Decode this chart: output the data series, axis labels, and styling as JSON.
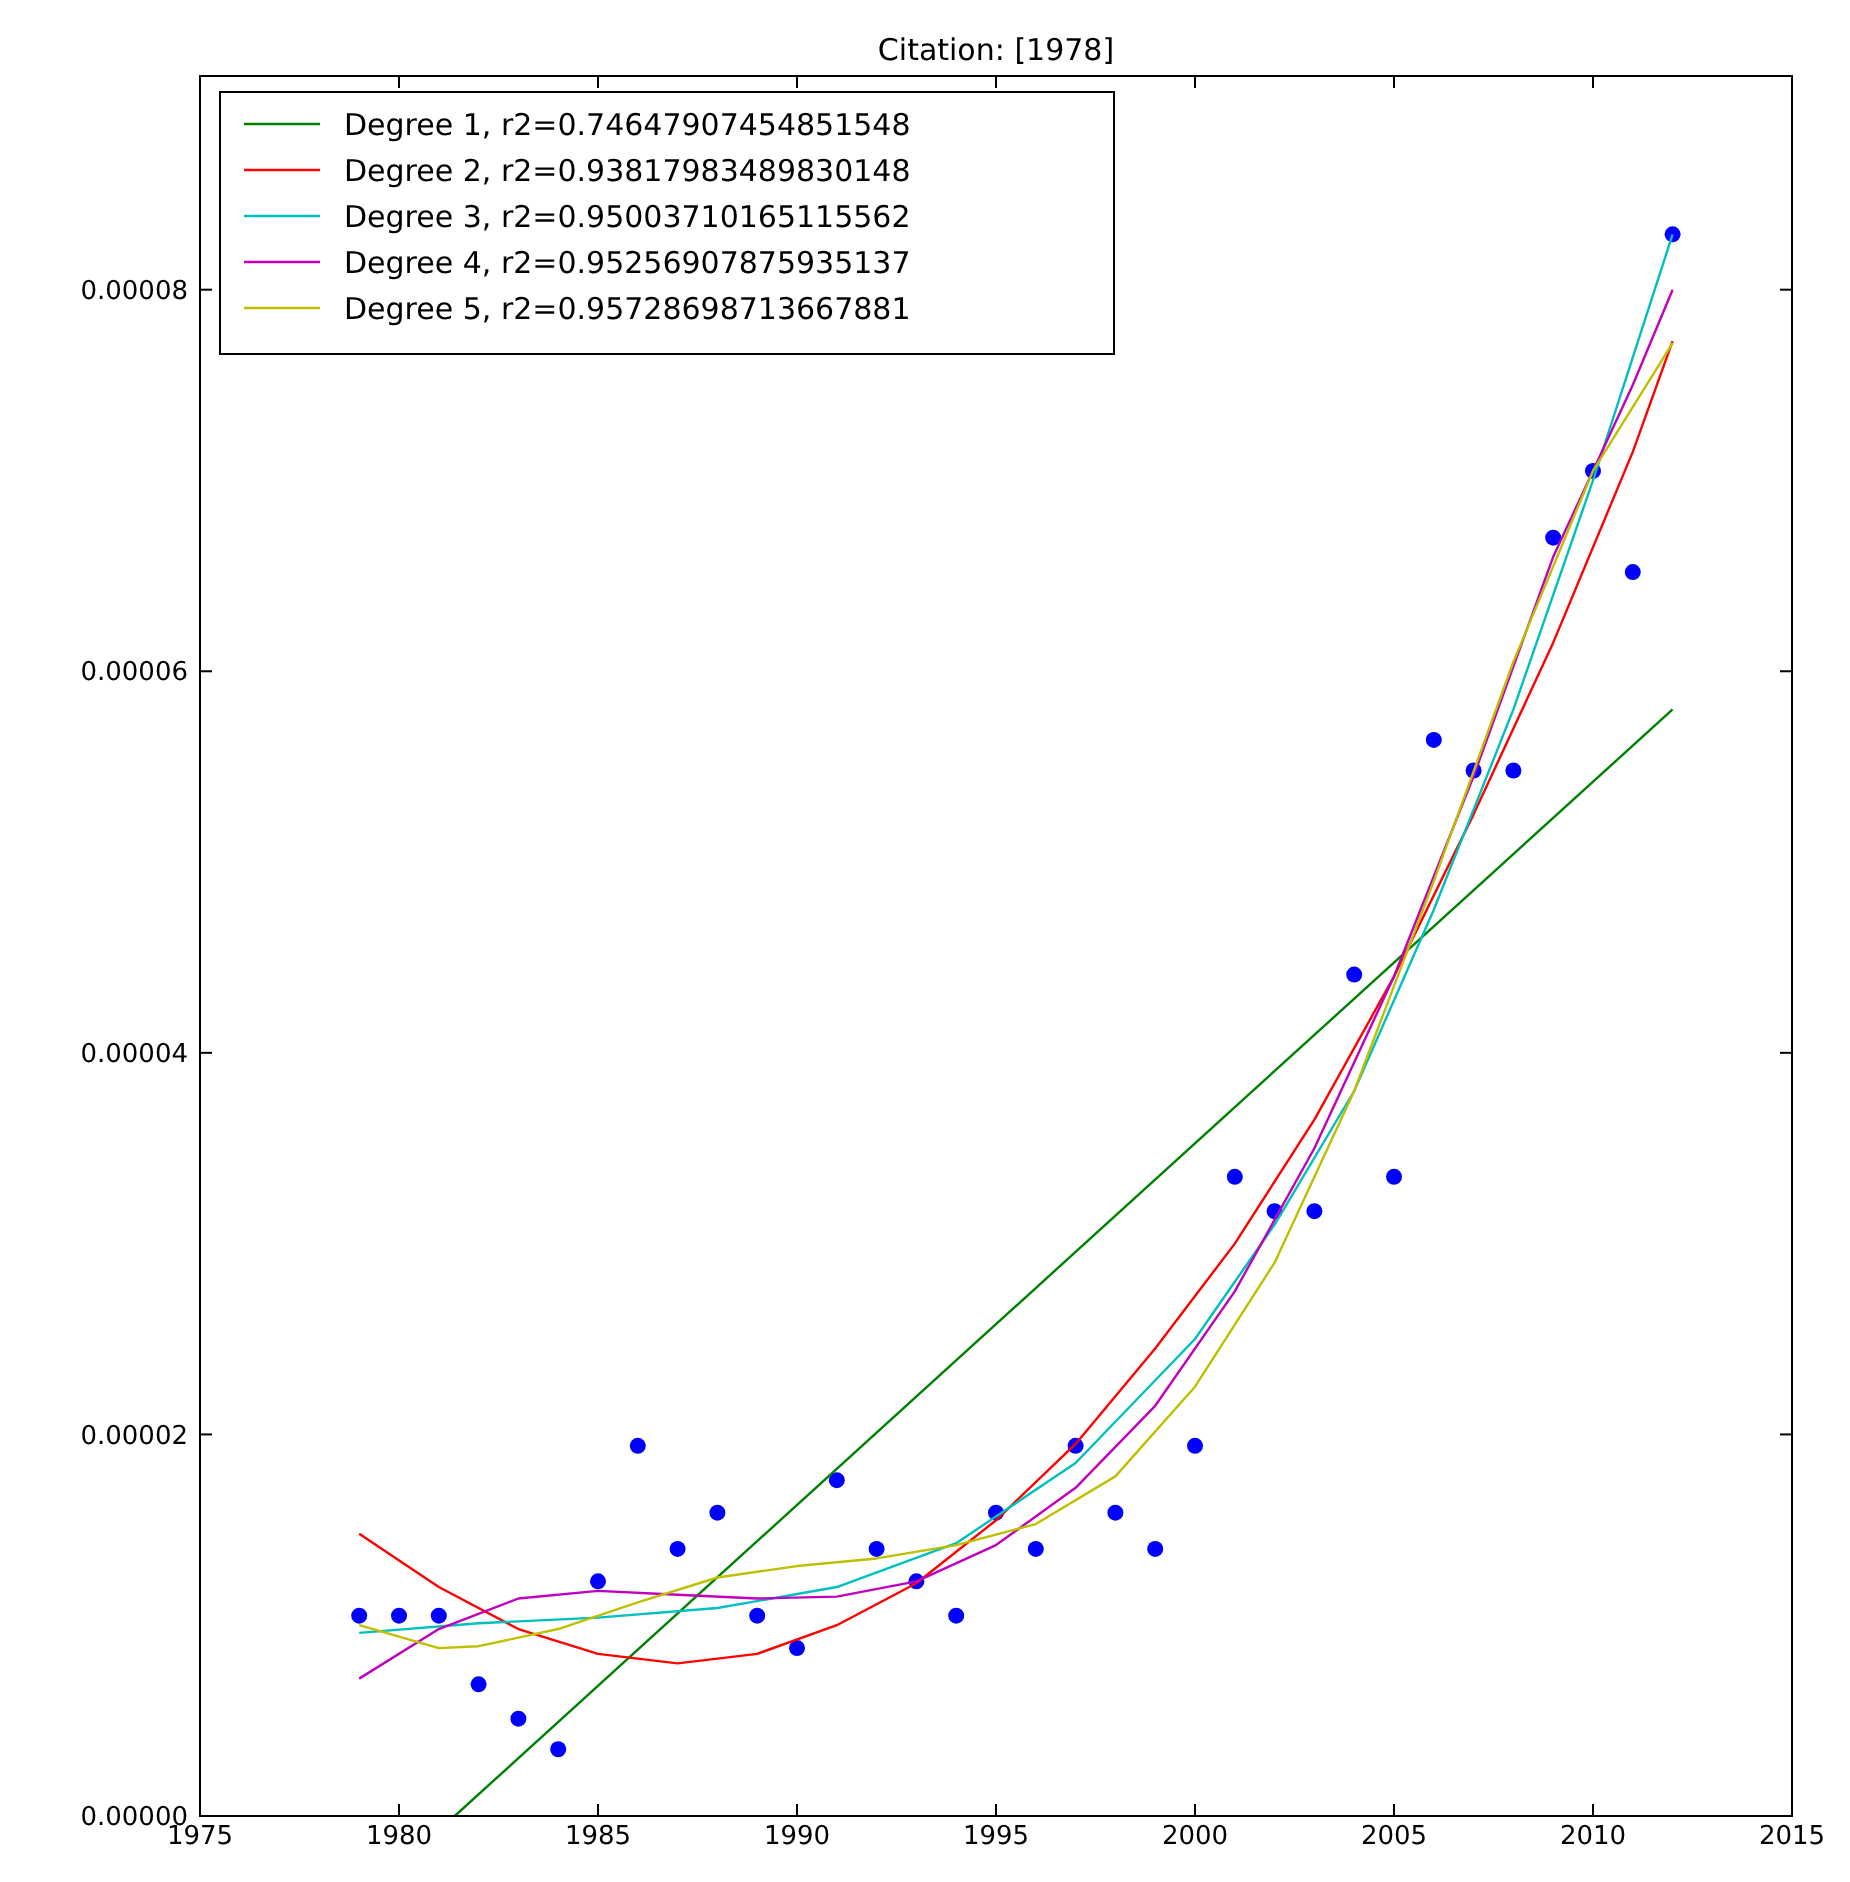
{
  "chart_data": {
    "type": "scatter",
    "title": "Citation: [1978]",
    "xlim": [
      1975,
      2015
    ],
    "xticks": [
      1975,
      1980,
      1985,
      1990,
      1995,
      2000,
      2005,
      2010,
      2015
    ],
    "ylim": [
      0,
      9.12e-05
    ],
    "yticks": [
      {
        "value": 0,
        "label": "0.00000"
      },
      {
        "value": 2e-05,
        "label": "0.00002"
      },
      {
        "value": 4e-05,
        "label": "0.00004"
      },
      {
        "value": 6e-05,
        "label": "0.00006"
      },
      {
        "value": 8e-05,
        "label": "0.00008"
      }
    ],
    "grid": false,
    "legend": "top left",
    "series": [
      {
        "color": "#0000ff",
        "marker": "circle",
        "x": [
          1979,
          1980,
          1981,
          1982,
          1983,
          1984,
          1985,
          1986,
          1987,
          1988,
          1989,
          1990,
          1991,
          1992,
          1993,
          1994,
          1995,
          1996,
          1997,
          1998,
          1999,
          2000,
          2001,
          2002,
          2003,
          2004,
          2005,
          2006,
          2007,
          2008,
          2009,
          2010,
          2011,
          2012
        ],
        "values": [
          1.05e-05,
          1.05e-05,
          1.05e-05,
          6.9e-06,
          5.1e-06,
          3.5e-06,
          1.23e-05,
          1.94e-05,
          1.4e-05,
          1.59e-05,
          1.05e-05,
          8.8e-06,
          1.76e-05,
          1.4e-05,
          1.23e-05,
          1.05e-05,
          1.59e-05,
          1.4e-05,
          1.94e-05,
          1.59e-05,
          1.4e-05,
          1.94e-05,
          3.35e-05,
          3.17e-05,
          3.17e-05,
          4.41e-05,
          3.35e-05,
          5.64e-05,
          5.48e-05,
          5.48e-05,
          6.7e-05,
          7.05e-05,
          6.52e-05,
          8.29e-05
        ]
      },
      {
        "type": "line",
        "name": "Degree 1, r2=0.74647907454851548",
        "color": "#008000",
        "marker": "none",
        "x": [
          1981.4,
          2012
        ],
        "values": [
          0,
          5.8e-05
        ]
      },
      {
        "type": "line",
        "name": "Degree 2, r2=0.93817983489830148",
        "color": "#ff0000",
        "marker": "none",
        "x": [
          1979,
          1981,
          1983,
          1985,
          1987,
          1989,
          1991,
          1993,
          1995,
          1997,
          1999,
          2001,
          2003,
          2005,
          2007,
          2009,
          2011,
          2012
        ],
        "values": [
          1.48e-05,
          1.2e-05,
          9.8e-06,
          8.5e-06,
          8e-06,
          8.5e-06,
          1e-05,
          1.22e-05,
          1.55e-05,
          1.95e-05,
          2.45e-05,
          3e-05,
          3.65e-05,
          4.4e-05,
          5.25e-05,
          6.15e-05,
          7.15e-05,
          7.73e-05
        ]
      },
      {
        "type": "line",
        "name": "Degree 3, r2=0.95003710165115562",
        "color": "#00bfbf",
        "marker": "none",
        "x": [
          1979,
          1982,
          1985,
          1988,
          1991,
          1994,
          1997,
          2000,
          2002,
          2004,
          2006,
          2008,
          2010,
          2012
        ],
        "values": [
          9.6e-06,
          1.01e-05,
          1.04e-05,
          1.09e-05,
          1.2e-05,
          1.43e-05,
          1.85e-05,
          2.5e-05,
          3.1e-05,
          3.8e-05,
          4.75e-05,
          5.8e-05,
          7e-05,
          8.29e-05
        ]
      },
      {
        "type": "line",
        "name": "Degree 4, r2=0.95256907875935137",
        "color": "#bf00bf",
        "marker": "none",
        "x": [
          1979,
          1981,
          1983,
          1985,
          1987,
          1989,
          1991,
          1993,
          1995,
          1997,
          1999,
          2001,
          2003,
          2005,
          2007,
          2009,
          2011,
          2012
        ],
        "values": [
          7.2e-06,
          9.8e-06,
          1.14e-05,
          1.18e-05,
          1.16e-05,
          1.14e-05,
          1.15e-05,
          1.23e-05,
          1.42e-05,
          1.72e-05,
          2.15e-05,
          2.75e-05,
          3.5e-05,
          4.4e-05,
          5.45e-05,
          6.6e-05,
          7.5e-05,
          8e-05
        ]
      },
      {
        "type": "line",
        "name": "Degree 5, r2=0.95728698713667881",
        "color": "#bfbf00",
        "marker": "none",
        "x": [
          1979,
          1981,
          1982,
          1984,
          1986,
          1988,
          1990,
          1992,
          1994,
          1996,
          1998,
          2000,
          2002,
          2004,
          2006,
          2008,
          2010,
          2012
        ],
        "values": [
          1e-05,
          8.8e-06,
          8.9e-06,
          9.8e-06,
          1.12e-05,
          1.25e-05,
          1.31e-05,
          1.35e-05,
          1.42e-05,
          1.53e-05,
          1.78e-05,
          2.25e-05,
          2.9e-05,
          3.8e-05,
          4.9e-05,
          6.05e-05,
          7.05e-05,
          7.72e-05
        ]
      }
    ]
  }
}
